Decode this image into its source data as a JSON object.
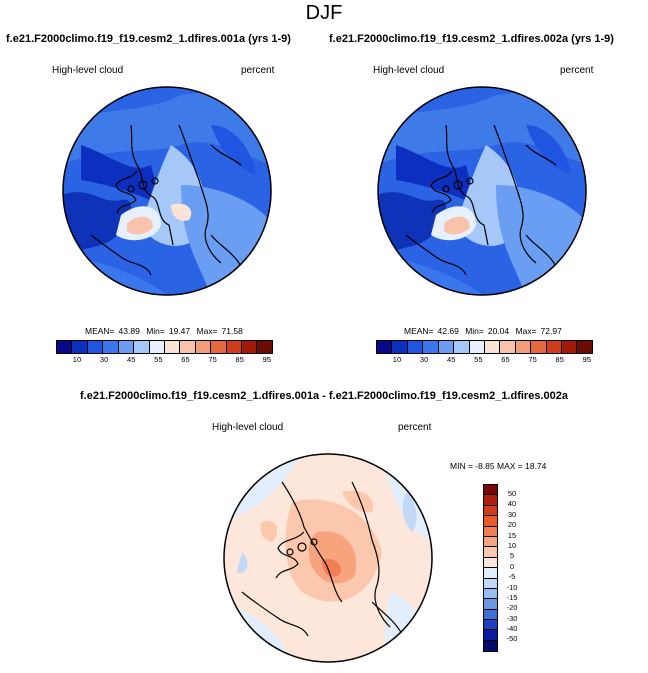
{
  "title": "DJF",
  "cases": {
    "left_title": "f.e21.F2000climo.f19_f19.cesm2_1.dfires.001a (yrs 1-9)",
    "right_title": "f.e21.F2000climo.f19_f19.cesm2_1.dfires.002a (yrs 1-9)"
  },
  "panels": [
    {
      "variable": "High-level cloud",
      "units": "percent",
      "mean_label": "MEAN=",
      "mean": "43.89",
      "min_label": "Min=",
      "min": "19.47",
      "max_label": "Max=",
      "max": "71.58"
    },
    {
      "variable": "High-level cloud",
      "units": "percent",
      "mean_label": "MEAN=",
      "mean": "42.69",
      "min_label": "Min=",
      "min": "20.04",
      "max_label": "Max=",
      "max": "72.97"
    }
  ],
  "colorbar": {
    "labels": [
      "10",
      "30",
      "45",
      "55",
      "65",
      "75",
      "85",
      "95"
    ],
    "colors": [
      "#08088a",
      "#0d2fbf",
      "#1f55e0",
      "#3a76ec",
      "#6a9ef3",
      "#a6c8f8",
      "#e6f0ff",
      "#fbe3d6",
      "#f8c3aa",
      "#f39c7c",
      "#e6683f",
      "#d13b1e",
      "#a11a0c",
      "#6d0a04"
    ]
  },
  "difference": {
    "title": "f.e21.F2000climo.f19_f19.cesm2_1.dfires.001a - f.e21.F2000climo.f19_f19.cesm2_1.dfires.002a",
    "variable": "High-level cloud",
    "units": "percent",
    "stats_label": "MIN =  -8.85 MAX =  18.74",
    "colorbar_labels": [
      "50",
      "40",
      "30",
      "20",
      "15",
      "10",
      "5",
      "0",
      "-5",
      "-10",
      "-15",
      "-20",
      "-30",
      "-40",
      "-50"
    ],
    "colorbar_colors": [
      "#7a0606",
      "#b01e0a",
      "#d43a14",
      "#ea5a2a",
      "#f27e52",
      "#f7a37e",
      "#fbc8ad",
      "#fde6da",
      "#e3eefc",
      "#c2d8f7",
      "#97bcf1",
      "#6a98e6",
      "#3f6fd8",
      "#1f3fc0",
      "#0b1aa0",
      "#050a6e"
    ]
  }
}
